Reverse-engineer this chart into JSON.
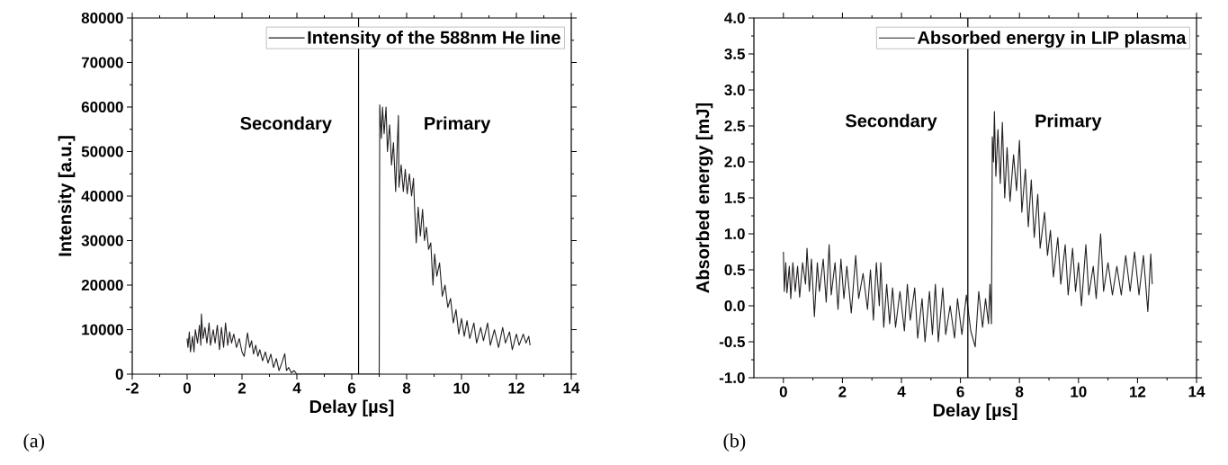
{
  "chart_data": [
    {
      "type": "line",
      "xlabel": "Delay [µs]",
      "ylabel": "Intensity [a.u.]",
      "legend": "top",
      "annotations": [
        "Secondary",
        "Primary",
        "(a)"
      ],
      "xlim": [
        -2,
        14
      ],
      "xticks": [
        -2,
        0,
        2,
        4,
        6,
        8,
        10,
        12,
        14
      ],
      "ylim": [
        0,
        80000
      ],
      "yticks": [
        0,
        10000,
        20000,
        30000,
        40000,
        50000,
        60000,
        70000,
        80000
      ],
      "ref_lines": [
        {
          "axis": "x",
          "value": 6.25
        }
      ],
      "series": [
        {
          "name": "Intensity of the 588nm He line",
          "color": "#231f20",
          "x": [
            0.0,
            0.03,
            0.08,
            0.12,
            0.2,
            0.25,
            0.3,
            0.38,
            0.45,
            0.5,
            0.52,
            0.58,
            0.65,
            0.72,
            0.8,
            0.85,
            0.95,
            1.02,
            1.1,
            1.18,
            1.25,
            1.33,
            1.4,
            1.48,
            1.55,
            1.62,
            1.7,
            1.8,
            1.9,
            2.0,
            2.08,
            2.15,
            2.2,
            2.28,
            2.35,
            2.42,
            2.5,
            2.58,
            2.65,
            2.75,
            2.85,
            2.95,
            3.05,
            3.15,
            3.25,
            3.35,
            3.45,
            3.56,
            3.62,
            3.7,
            3.8,
            3.9,
            4.0,
            5.0,
            6.0,
            7.0,
            7.02,
            7.08,
            7.12,
            7.18,
            7.25,
            7.3,
            7.38,
            7.45,
            7.52,
            7.6,
            7.65,
            7.7,
            7.72,
            7.8,
            7.88,
            7.95,
            8.02,
            8.1,
            8.18,
            8.25,
            8.3,
            8.35,
            8.42,
            8.5,
            8.58,
            8.65,
            8.72,
            8.8,
            8.88,
            8.96,
            9.02,
            9.1,
            9.2,
            9.3,
            9.4,
            9.5,
            9.6,
            9.7,
            9.8,
            9.9,
            10.0,
            10.1,
            10.2,
            10.3,
            10.45,
            10.55,
            10.7,
            10.8,
            10.95,
            11.05,
            11.2,
            11.35,
            11.5,
            11.6,
            11.75,
            11.85,
            12.0,
            12.1,
            12.25,
            12.35,
            12.45,
            12.5
          ],
          "values": [
            8000,
            6000,
            9500,
            5000,
            8500,
            5000,
            10000,
            7000,
            11000,
            6500,
            13500,
            8000,
            10500,
            7000,
            11500,
            6500,
            10000,
            7000,
            11000,
            5500,
            10500,
            6000,
            11500,
            6500,
            9500,
            7000,
            9000,
            6000,
            8000,
            5000,
            4000,
            7000,
            9300,
            6000,
            7500,
            4500,
            6500,
            4000,
            5500,
            3000,
            5000,
            2500,
            4500,
            1500,
            3500,
            800,
            2500,
            4600,
            800,
            1500,
            300,
            800,
            0,
            0,
            0,
            0,
            60500,
            53000,
            60000,
            54000,
            60000,
            50000,
            56000,
            47000,
            52000,
            41000,
            50000,
            58100,
            42000,
            47000,
            41000,
            46000,
            40500,
            45000,
            40000,
            44000,
            36000,
            29500,
            37500,
            31000,
            37000,
            30000,
            33000,
            28000,
            29500,
            20000,
            27000,
            22000,
            25000,
            17500,
            20000,
            15000,
            17000,
            11500,
            14500,
            9000,
            12500,
            8500,
            12000,
            8000,
            11500,
            7000,
            10500,
            7500,
            11500,
            6500,
            10000,
            6000,
            10500,
            7000,
            9500,
            5500,
            9000,
            6500,
            9000,
            7000,
            8500,
            6500
          ]
        }
      ]
    },
    {
      "type": "line",
      "xlabel": "Delay [µs]",
      "ylabel": "Absorbed energy [mJ]",
      "legend": "top",
      "annotations": [
        "Secondary",
        "Primary",
        "(b)"
      ],
      "xlim": [
        -1,
        14
      ],
      "xticks": [
        0,
        2,
        4,
        6,
        8,
        10,
        12,
        14
      ],
      "ylim": [
        -1.0,
        4.0
      ],
      "yticks": [
        {
          "value": -1.0,
          "label": "-1.0"
        },
        {
          "value": -0.5,
          "label": "-0.5"
        },
        {
          "value": 0.0,
          "label": "0.0"
        },
        {
          "value": 0.5,
          "label": "0.5"
        },
        {
          "value": 1.0,
          "label": "1.0"
        },
        {
          "value": 1.5,
          "label": "1.5"
        },
        {
          "value": 2.0,
          "label": "2.0"
        },
        {
          "value": 2.5,
          "label": "2.5"
        },
        {
          "value": 3.0,
          "label": "3.0"
        },
        {
          "value": 3.5,
          "label": "3.5"
        },
        {
          "value": 4.0,
          "label": "4.0"
        }
      ],
      "ref_lines": [
        {
          "axis": "x",
          "value": 6.25
        }
      ],
      "series": [
        {
          "name": "Absorbed energy in LIP plasma",
          "color": "#231f20",
          "x": [
            0.0,
            0.03,
            0.08,
            0.12,
            0.2,
            0.25,
            0.32,
            0.4,
            0.48,
            0.55,
            0.65,
            0.75,
            0.8,
            0.88,
            0.95,
            1.05,
            1.15,
            1.22,
            1.35,
            1.45,
            1.55,
            1.62,
            1.75,
            1.85,
            1.95,
            2.05,
            2.15,
            2.3,
            2.45,
            2.55,
            2.7,
            2.85,
            2.95,
            3.05,
            3.15,
            3.25,
            3.3,
            3.4,
            3.5,
            3.6,
            3.7,
            3.8,
            3.95,
            4.1,
            4.2,
            4.3,
            4.45,
            4.55,
            4.7,
            4.8,
            4.95,
            5.05,
            5.15,
            5.25,
            5.4,
            5.5,
            5.65,
            5.8,
            5.9,
            6.05,
            6.2,
            6.35,
            6.5,
            6.62,
            6.75,
            6.85,
            6.95,
            7.0,
            7.05,
            7.08,
            7.12,
            7.15,
            7.2,
            7.27,
            7.35,
            7.42,
            7.5,
            7.58,
            7.68,
            7.8,
            7.9,
            8.0,
            8.08,
            8.2,
            8.3,
            8.4,
            8.5,
            8.62,
            8.7,
            8.85,
            8.95,
            9.05,
            9.15,
            9.3,
            9.4,
            9.55,
            9.65,
            9.8,
            9.9,
            10.0,
            10.1,
            10.25,
            10.35,
            10.5,
            10.6,
            10.75,
            10.85,
            11.0,
            11.15,
            11.3,
            11.45,
            11.6,
            11.75,
            11.9,
            12.05,
            12.2,
            12.35,
            12.45,
            12.5
          ],
          "values": [
            0.75,
            0.2,
            0.6,
            0.18,
            0.55,
            0.1,
            0.6,
            0.2,
            0.55,
            0.12,
            0.6,
            0.3,
            0.8,
            0.2,
            0.65,
            -0.15,
            0.6,
            0.2,
            0.65,
            0.05,
            0.85,
            0.15,
            0.6,
            -0.05,
            0.65,
            0.1,
            0.55,
            -0.1,
            0.7,
            0.1,
            0.45,
            -0.05,
            0.5,
            -0.2,
            0.6,
            0.0,
            0.6,
            -0.3,
            0.3,
            -0.25,
            0.25,
            -0.3,
            0.2,
            -0.35,
            0.3,
            -0.2,
            0.25,
            -0.45,
            0.1,
            -0.5,
            0.2,
            -0.4,
            0.3,
            -0.5,
            0.25,
            -0.4,
            0.0,
            -0.45,
            0.1,
            -0.4,
            0.15,
            -0.35,
            -0.57,
            0.2,
            -0.3,
            0.1,
            -0.25,
            0.3,
            -0.25,
            2.35,
            2.0,
            2.7,
            1.8,
            2.45,
            1.7,
            2.55,
            1.5,
            2.2,
            1.45,
            2.1,
            1.6,
            2.3,
            1.3,
            1.9,
            1.1,
            1.75,
            0.95,
            1.55,
            0.8,
            1.3,
            0.7,
            1.05,
            0.4,
            0.95,
            0.3,
            0.85,
            0.15,
            0.8,
            0.2,
            0.6,
            0.0,
            0.85,
            0.15,
            0.55,
            0.1,
            1.0,
            0.2,
            0.6,
            0.15,
            0.55,
            0.15,
            0.7,
            0.2,
            0.75,
            0.15,
            0.7,
            -0.08,
            0.72,
            0.3
          ]
        }
      ]
    }
  ]
}
